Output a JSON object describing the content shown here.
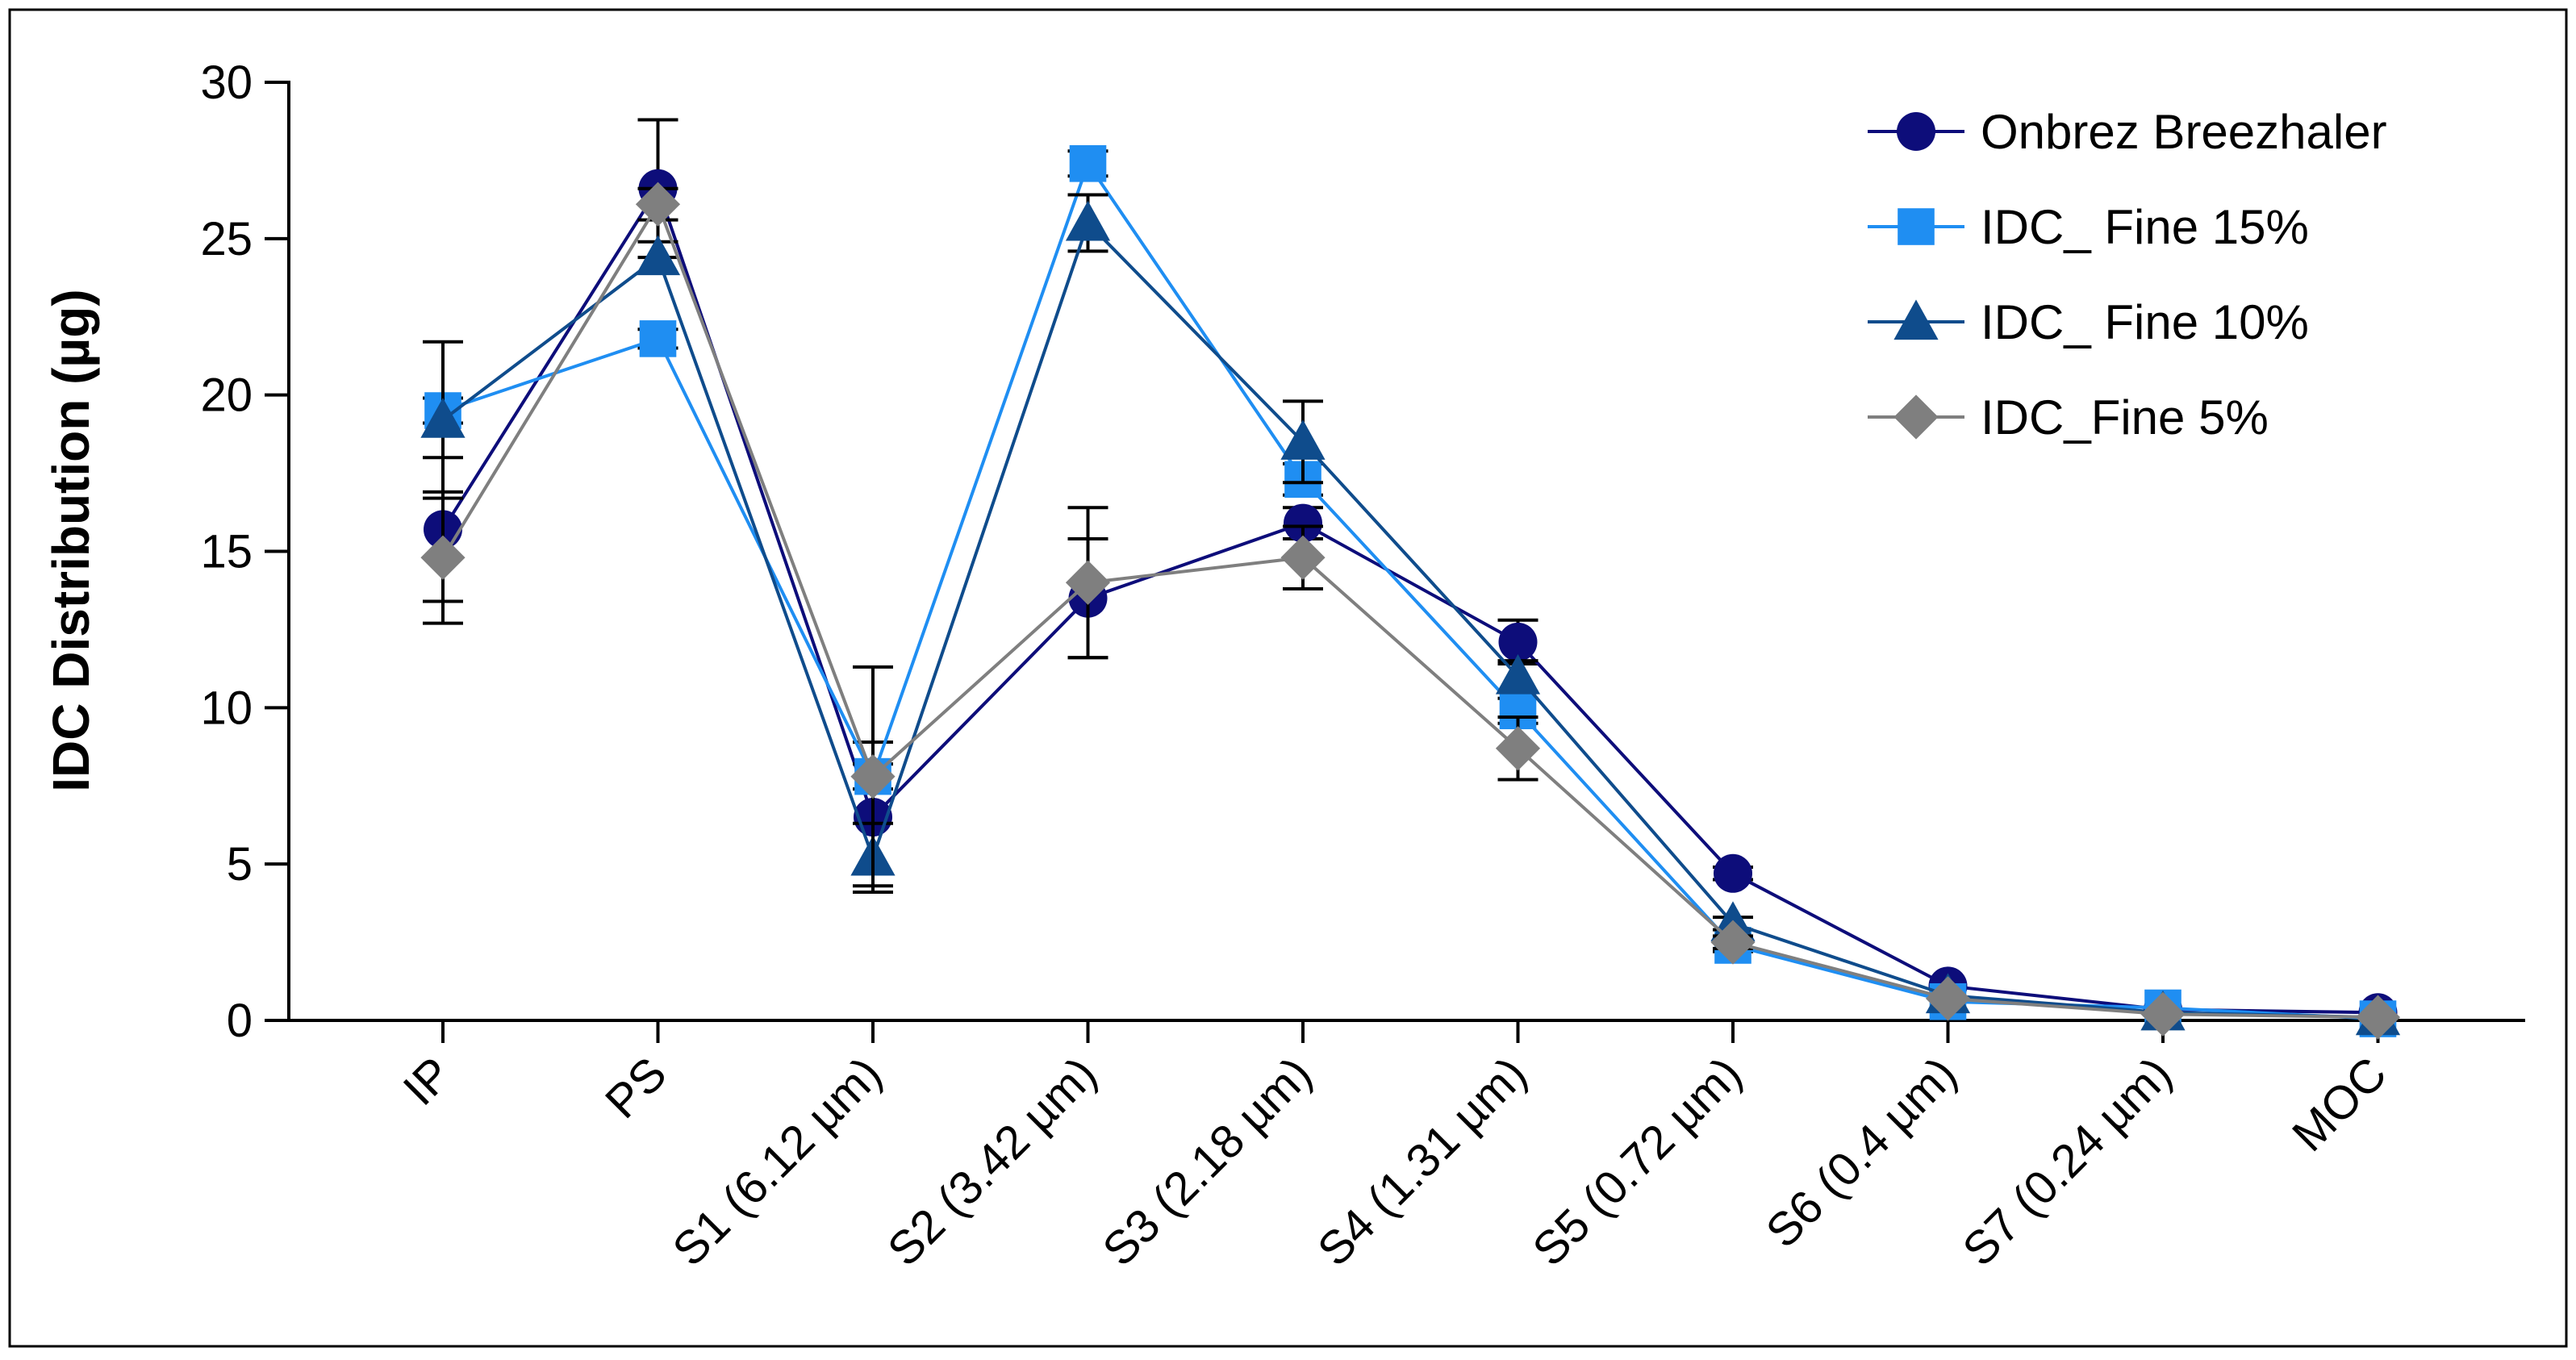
{
  "chart_data": {
    "type": "line",
    "title": "",
    "xlabel": "",
    "ylabel": "IDC Distribution (µg)",
    "ylim": [
      0,
      30
    ],
    "yticks": [
      "0",
      "5",
      "10",
      "15",
      "20",
      "25",
      "30"
    ],
    "categories": [
      "IP",
      "PS",
      "S1 (6.12 µm)",
      "S2 (3.42 µm)",
      "S3 (2.18 µm)",
      "S4 (1.31 µm)",
      "S5 (0.72 µm)",
      "S6 (0.4 µm)",
      "S7 (0.24 µm)",
      "MOC"
    ],
    "legend_position": "top-right",
    "series": [
      {
        "name": "Onbrez Breezhaler",
        "marker": "circle",
        "color": "#0d0d7a",
        "values": [
          15.7,
          26.6,
          6.5,
          13.5,
          15.9,
          12.1,
          4.7,
          1.1,
          0.35,
          0.25
        ],
        "errors": [
          2.3,
          2.2,
          2.4,
          1.9,
          0.5,
          0.7,
          0.2,
          0.1,
          0.05,
          0.05
        ]
      },
      {
        "name": "IDC_ Fine 15%",
        "marker": "square",
        "color": "#1f8ef2",
        "values": [
          19.5,
          21.8,
          7.8,
          27.4,
          17.3,
          9.9,
          2.4,
          0.6,
          0.4,
          0.05
        ],
        "errors": [
          0.4,
          0.3,
          0.4,
          0.4,
          0.5,
          0.4,
          0.2,
          0.1,
          0.05,
          0.05
        ]
      },
      {
        "name": "IDC_ Fine 10%",
        "marker": "triangle",
        "color": "#0f4c8c",
        "values": [
          19.2,
          24.4,
          5.2,
          25.5,
          18.5,
          11.0,
          3.1,
          0.8,
          0.25,
          0.1
        ],
        "errors": [
          2.5,
          0.5,
          1.1,
          0.9,
          1.3,
          0.5,
          0.2,
          0.1,
          0.05,
          0.05
        ]
      },
      {
        "name": "IDC_Fine 5%",
        "marker": "diamond",
        "color": "#7f7f7f",
        "values": [
          14.8,
          26.1,
          7.8,
          14.0,
          14.8,
          8.7,
          2.5,
          0.7,
          0.2,
          0.1
        ],
        "errors": [
          2.1,
          0.5,
          3.5,
          2.4,
          1.0,
          1.0,
          0.2,
          0.1,
          0.05,
          0.05
        ]
      }
    ]
  }
}
